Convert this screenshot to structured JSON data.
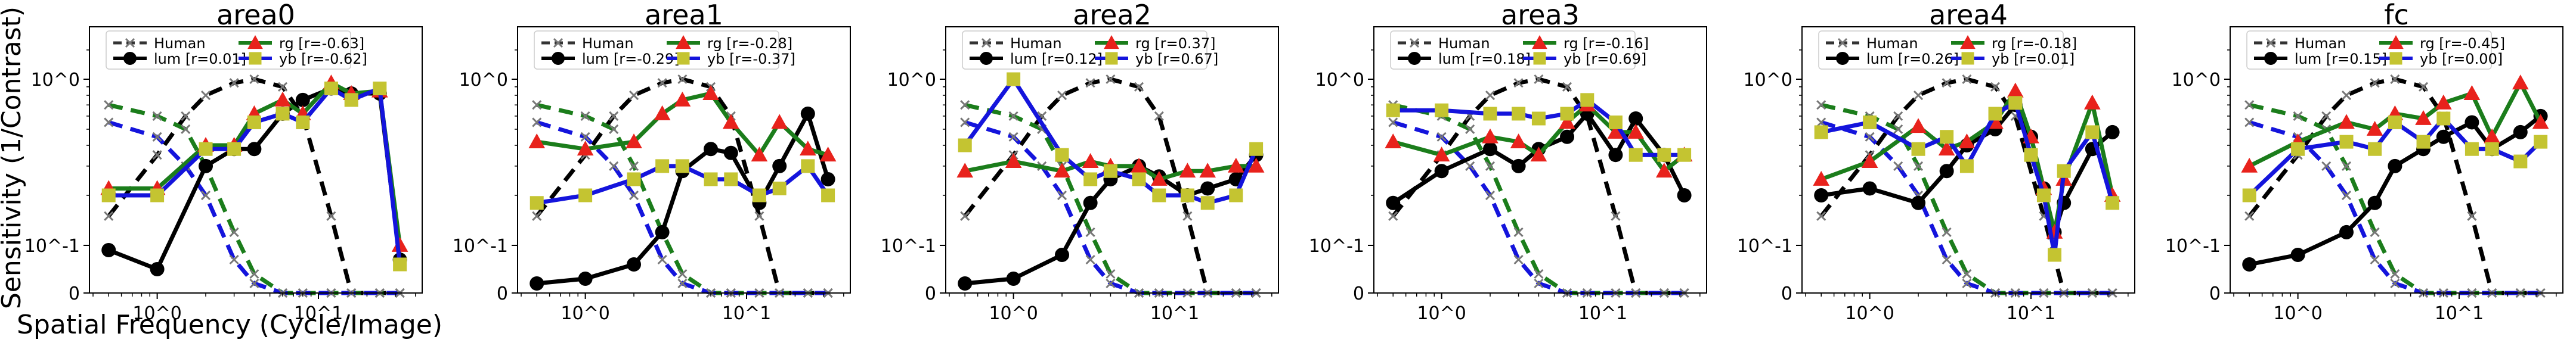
{
  "figure": {
    "ylabel": "Sensitivity (1/Contrast)",
    "xlabel": "Spatial Frequency (Cycle/Image)"
  },
  "colors": {
    "lum": "#000000",
    "rg": "#1b7d1b",
    "yb": "#1414dc",
    "rg_marker": "#e8221c",
    "yb_marker": "#c4c431",
    "human": "#333333",
    "human_marker": "#777777",
    "human_lum": "#000000",
    "human_rg": "#1b7d1b",
    "human_yb": "#1414dc"
  },
  "chart_data": [
    {
      "type": "line",
      "title": "area0",
      "x": [
        0.5,
        1,
        2,
        3,
        4,
        6,
        8,
        12,
        16,
        24,
        32
      ],
      "xscale": "log",
      "yscale": "symlog",
      "xticks": [
        "10^0",
        "10^1"
      ],
      "yticks": [
        "0",
        "10^-1",
        "10^0"
      ],
      "legend": {
        "placement": "top",
        "human": "Human",
        "lum": "lum [r=0.01]",
        "rg": "rg    [r=-0.63]",
        "yb": "yb    [r=-0.62]"
      },
      "series": [
        {
          "name": "lum",
          "values": [
            0.09,
            0.05,
            0.3,
            0.38,
            0.38,
            0.62,
            0.75,
            0.88,
            0.82,
            0.82,
            0.07
          ]
        },
        {
          "name": "rg",
          "values": [
            0.22,
            0.22,
            0.4,
            0.4,
            0.62,
            0.75,
            0.62,
            0.95,
            0.82,
            0.85,
            0.1
          ]
        },
        {
          "name": "yb",
          "values": [
            0.2,
            0.2,
            0.38,
            0.38,
            0.55,
            0.62,
            0.55,
            0.88,
            0.75,
            0.88,
            0.06
          ]
        }
      ]
    },
    {
      "type": "line",
      "title": "area1",
      "x": [
        0.5,
        1,
        2,
        3,
        4,
        6,
        8,
        12,
        16,
        24,
        32
      ],
      "xscale": "log",
      "yscale": "symlog",
      "xticks": [
        "10^0",
        "10^1"
      ],
      "yticks": [
        "0",
        "10^-1",
        "10^0"
      ],
      "legend": {
        "placement": "top",
        "human": "Human",
        "lum": "lum [r=-0.29]",
        "rg": "rg    [r=-0.28]",
        "yb": "yb    [r=-0.37]"
      },
      "series": [
        {
          "name": "lum",
          "values": [
            0.02,
            0.03,
            0.06,
            0.12,
            0.28,
            0.38,
            0.36,
            0.18,
            0.3,
            0.62,
            0.25
          ]
        },
        {
          "name": "rg",
          "values": [
            0.42,
            0.38,
            0.42,
            0.62,
            0.75,
            0.82,
            0.55,
            0.35,
            0.55,
            0.38,
            0.35
          ]
        },
        {
          "name": "yb",
          "values": [
            0.18,
            0.2,
            0.25,
            0.3,
            0.3,
            0.25,
            0.25,
            0.2,
            0.22,
            0.3,
            0.2
          ]
        }
      ]
    },
    {
      "type": "line",
      "title": "area2",
      "x": [
        0.5,
        1,
        2,
        3,
        4,
        6,
        8,
        12,
        16,
        24,
        32
      ],
      "xscale": "log",
      "yscale": "symlog",
      "xticks": [
        "10^0",
        "10^1"
      ],
      "yticks": [
        "0",
        "10^-1",
        "10^0"
      ],
      "legend": {
        "placement": "top",
        "human": "Human",
        "lum": "lum [r=0.12]",
        "rg": "rg    [r=0.37]",
        "yb": "yb    [r=0.67]"
      },
      "series": [
        {
          "name": "lum",
          "values": [
            0.02,
            0.03,
            0.08,
            0.18,
            0.25,
            0.3,
            0.26,
            0.2,
            0.22,
            0.25,
            0.35
          ]
        },
        {
          "name": "rg",
          "values": [
            0.28,
            0.32,
            0.28,
            0.32,
            0.3,
            0.3,
            0.25,
            0.28,
            0.28,
            0.3,
            0.3
          ]
        },
        {
          "name": "yb",
          "values": [
            0.4,
            1.0,
            0.35,
            0.25,
            0.28,
            0.25,
            0.2,
            0.2,
            0.18,
            0.2,
            0.38
          ]
        }
      ]
    },
    {
      "type": "line",
      "title": "area3",
      "x": [
        0.5,
        1,
        2,
        3,
        4,
        6,
        8,
        12,
        16,
        24,
        32
      ],
      "xscale": "log",
      "yscale": "symlog",
      "xticks": [
        "10^0",
        "10^1"
      ],
      "yticks": [
        "0",
        "10^-1",
        "10^0"
      ],
      "legend": {
        "placement": "top",
        "human": "Human",
        "lum": "lum [r=0.18]",
        "rg": "rg    [r=-0.16]",
        "yb": "yb    [r=0.69]"
      },
      "series": [
        {
          "name": "lum",
          "values": [
            0.18,
            0.28,
            0.38,
            0.3,
            0.38,
            0.45,
            0.62,
            0.35,
            0.58,
            0.35,
            0.2
          ]
        },
        {
          "name": "rg",
          "values": [
            0.42,
            0.35,
            0.45,
            0.42,
            0.35,
            0.55,
            0.7,
            0.48,
            0.48,
            0.28,
            0.35
          ]
        },
        {
          "name": "yb",
          "values": [
            0.65,
            0.65,
            0.62,
            0.62,
            0.58,
            0.62,
            0.75,
            0.55,
            0.35,
            0.35,
            0.35
          ]
        }
      ]
    },
    {
      "type": "line",
      "title": "area4",
      "x": [
        0.5,
        1,
        2,
        3,
        4,
        6,
        8,
        10,
        12,
        14,
        16,
        24,
        32
      ],
      "xscale": "log",
      "yscale": "symlog",
      "xticks": [
        "10^0",
        "10^1"
      ],
      "yticks": [
        "0",
        "10^-1",
        "10^0"
      ],
      "legend": {
        "placement": "top",
        "human": "Human",
        "lum": "lum [r=0.26]",
        "rg": "rg    [r=-0.18]",
        "yb": "yb    [r=0.01]"
      },
      "series": [
        {
          "name": "lum",
          "values": [
            0.2,
            0.22,
            0.18,
            0.28,
            0.4,
            0.5,
            0.7,
            0.45,
            0.22,
            0.12,
            0.18,
            0.38,
            0.48
          ]
        },
        {
          "name": "rg",
          "values": [
            0.25,
            0.32,
            0.52,
            0.38,
            0.42,
            0.55,
            0.85,
            0.45,
            0.22,
            0.12,
            0.25,
            0.72,
            0.2
          ]
        },
        {
          "name": "yb",
          "values": [
            0.48,
            0.55,
            0.38,
            0.45,
            0.3,
            0.62,
            0.72,
            0.35,
            0.2,
            0.08,
            0.28,
            0.48,
            0.18
          ]
        }
      ]
    },
    {
      "type": "line",
      "title": "fc",
      "x": [
        0.5,
        1,
        2,
        3,
        4,
        6,
        8,
        12,
        16,
        24,
        32
      ],
      "xscale": "log",
      "yscale": "symlog",
      "xticks": [
        "10^0",
        "10^1"
      ],
      "yticks": [
        "0",
        "10^-1",
        "10^0"
      ],
      "legend": {
        "placement": "top",
        "human": "Human",
        "lum": "lum [r=0.15]",
        "rg": "rg    [r=-0.45]",
        "yb": "yb    [r=0.00]"
      },
      "series": [
        {
          "name": "lum",
          "values": [
            0.06,
            0.08,
            0.12,
            0.18,
            0.3,
            0.38,
            0.45,
            0.55,
            0.38,
            0.48,
            0.6
          ]
        },
        {
          "name": "rg",
          "values": [
            0.3,
            0.42,
            0.55,
            0.5,
            0.62,
            0.58,
            0.72,
            0.82,
            0.45,
            0.95,
            0.55
          ]
        },
        {
          "name": "yb",
          "values": [
            0.2,
            0.38,
            0.42,
            0.38,
            0.55,
            0.42,
            0.58,
            0.38,
            0.38,
            0.32,
            0.42
          ]
        }
      ]
    }
  ],
  "human_reference": {
    "x": [
      0.5,
      1,
      1.5,
      2,
      3,
      4,
      6,
      8,
      12,
      16,
      24,
      32
    ],
    "series": [
      {
        "name": "Human lum",
        "values": [
          0.15,
          0.35,
          0.6,
          0.8,
          0.95,
          1.0,
          0.9,
          0.6,
          0.15,
          0.0,
          0.0,
          0.0
        ]
      },
      {
        "name": "Human rg",
        "values": [
          0.7,
          0.6,
          0.5,
          0.3,
          0.12,
          0.04,
          0.0,
          0.0,
          0.0,
          0.0,
          0.0,
          0.0
        ]
      },
      {
        "name": "Human yb",
        "values": [
          0.55,
          0.45,
          0.3,
          0.2,
          0.07,
          0.02,
          0.0,
          0.0,
          0.0,
          0.0,
          0.0,
          0.0
        ]
      }
    ]
  }
}
